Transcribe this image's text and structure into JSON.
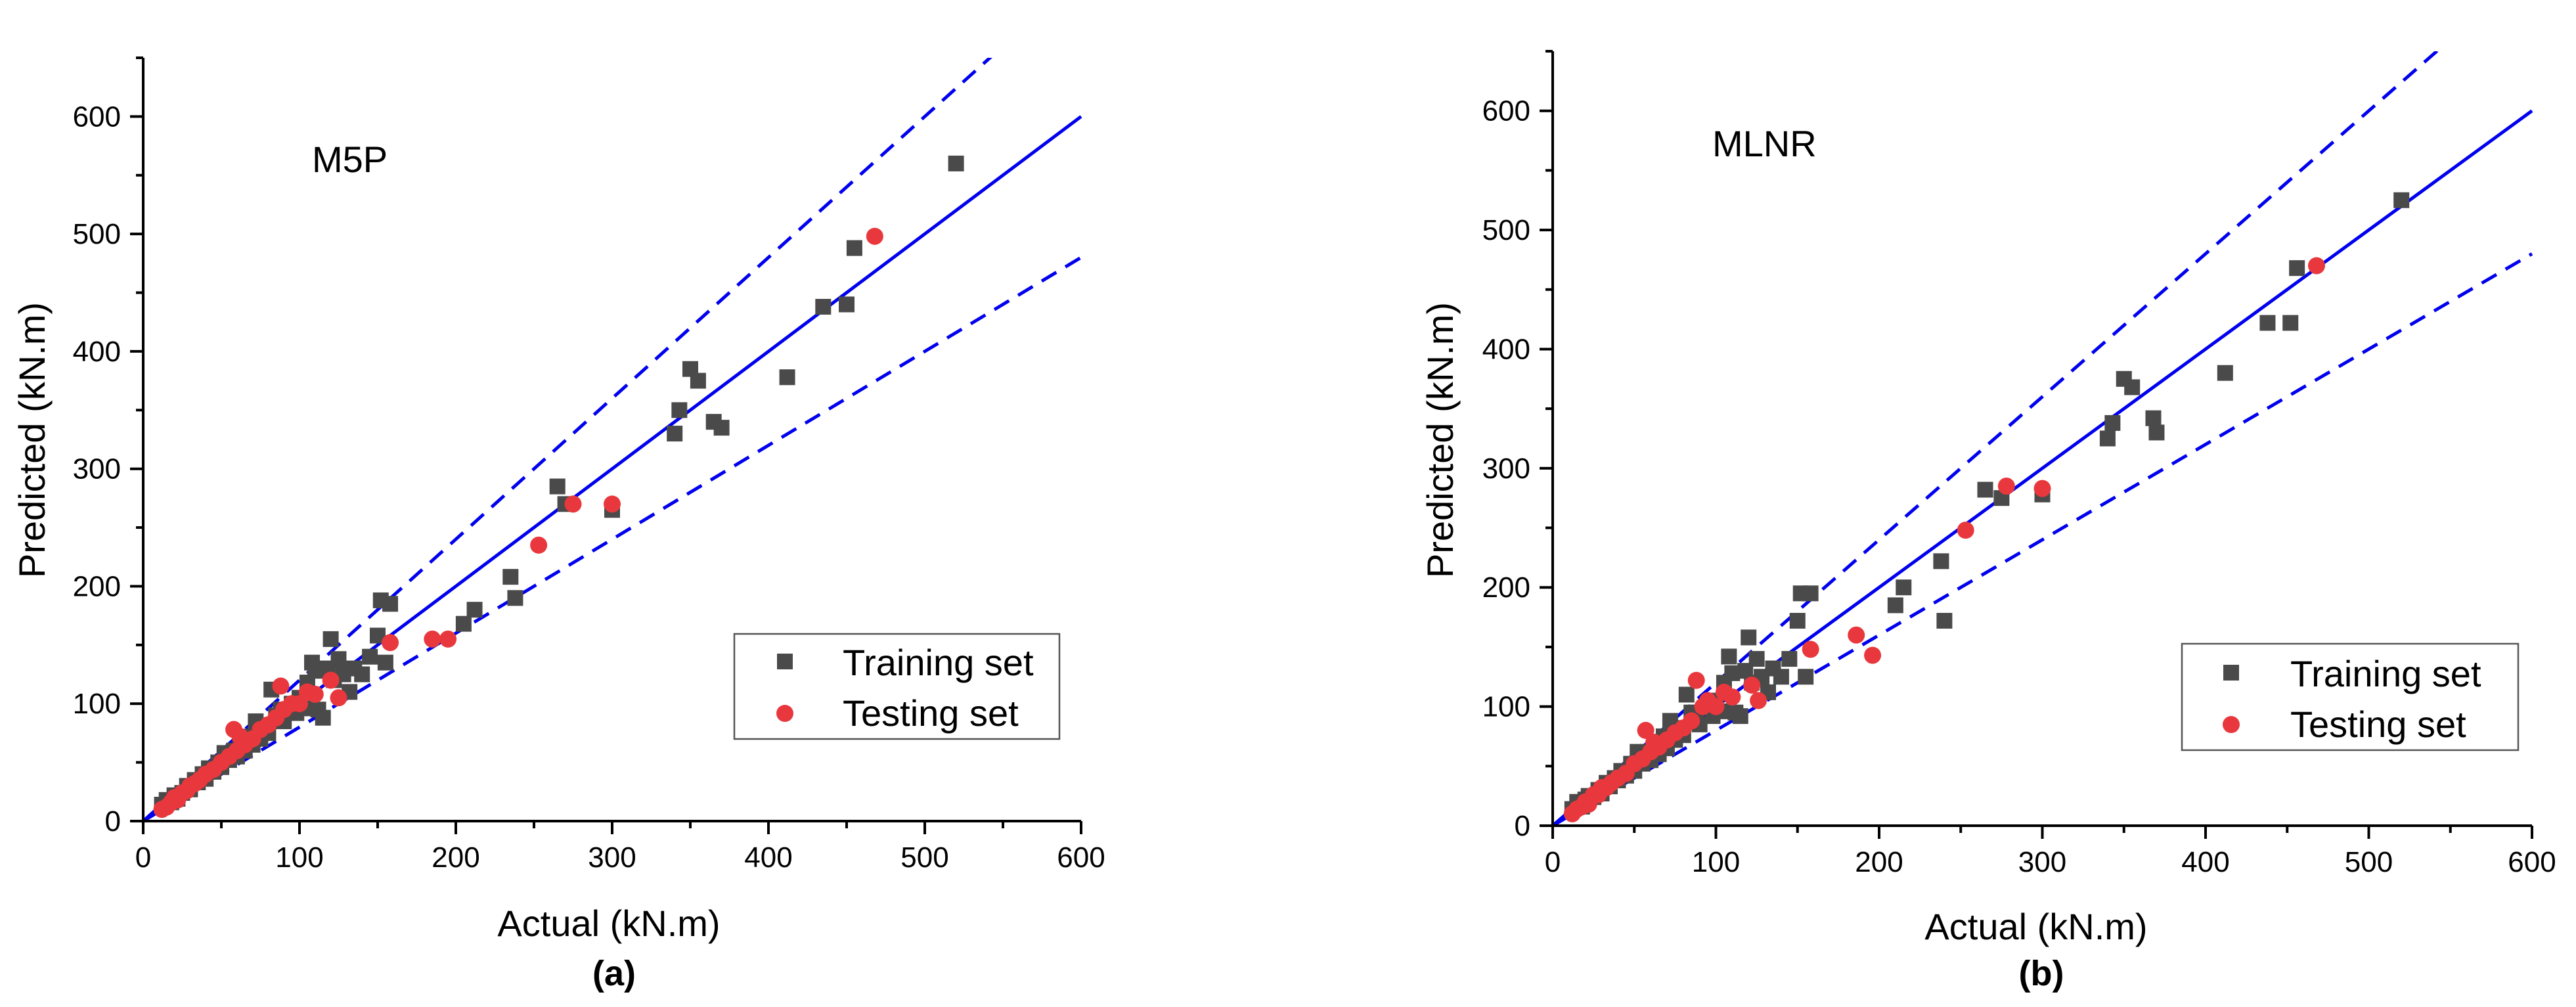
{
  "colors": {
    "training": "#4a4a4a",
    "testing": "#e8383d",
    "line": "#0000ee",
    "axis": "#000000"
  },
  "chart_data": [
    {
      "type": "scatter",
      "panel_label": "(a)",
      "model_label": "M5P",
      "xlabel": "Actual (kN.m)",
      "ylabel": "Predicted (kN.m)",
      "xlim": [
        0,
        600
      ],
      "ylim": [
        0,
        650
      ],
      "xticks": [
        0,
        100,
        200,
        300,
        400,
        500,
        600
      ],
      "yticks": [
        0,
        100,
        200,
        300,
        400,
        500,
        600
      ],
      "legend_position": "bottom-right",
      "reference_lines": {
        "ideal_slope": 1.0,
        "upper_slope": 1.2,
        "lower_slope": 0.8
      },
      "series": [
        {
          "name": "Training set",
          "marker": "square",
          "points": [
            [
              12,
              14
            ],
            [
              15,
              18
            ],
            [
              18,
              16
            ],
            [
              20,
              22
            ],
            [
              22,
              19
            ],
            [
              25,
              24
            ],
            [
              28,
              30
            ],
            [
              30,
              27
            ],
            [
              33,
              35
            ],
            [
              35,
              33
            ],
            [
              38,
              40
            ],
            [
              40,
              36
            ],
            [
              42,
              45
            ],
            [
              45,
              42
            ],
            [
              48,
              50
            ],
            [
              50,
              46
            ],
            [
              52,
              58
            ],
            [
              55,
              52
            ],
            [
              58,
              60
            ],
            [
              60,
              55
            ],
            [
              62,
              68
            ],
            [
              65,
              60
            ],
            [
              68,
              72
            ],
            [
              70,
              65
            ],
            [
              72,
              85
            ],
            [
              75,
              70
            ],
            [
              78,
              80
            ],
            [
              80,
              75
            ],
            [
              82,
              112
            ],
            [
              85,
              90
            ],
            [
              88,
              95
            ],
            [
              90,
              85
            ],
            [
              95,
              100
            ],
            [
              98,
              92
            ],
            [
              100,
              105
            ],
            [
              103,
              96
            ],
            [
              105,
              118
            ],
            [
              108,
              135
            ],
            [
              110,
              128
            ],
            [
              112,
              95
            ],
            [
              115,
              88
            ],
            [
              118,
              130
            ],
            [
              120,
              155
            ],
            [
              122,
              120
            ],
            [
              125,
              138
            ],
            [
              128,
              125
            ],
            [
              132,
              110
            ],
            [
              135,
              130
            ],
            [
              140,
              125
            ],
            [
              145,
              140
            ],
            [
              150,
              158
            ],
            [
              152,
              188
            ],
            [
              155,
              135
            ],
            [
              158,
              185
            ],
            [
              205,
              168
            ],
            [
              212,
              180
            ],
            [
              235,
              208
            ],
            [
              238,
              190
            ],
            [
              265,
              285
            ],
            [
              270,
              270
            ],
            [
              300,
              265
            ],
            [
              340,
              330
            ],
            [
              343,
              350
            ],
            [
              350,
              385
            ],
            [
              355,
              375
            ],
            [
              365,
              340
            ],
            [
              370,
              335
            ],
            [
              412,
              378
            ],
            [
              435,
              438
            ],
            [
              450,
              440
            ],
            [
              455,
              488
            ],
            [
              520,
              560
            ]
          ]
        },
        {
          "name": "Testing set",
          "marker": "circle",
          "points": [
            [
              12,
              10
            ],
            [
              15,
              12
            ],
            [
              18,
              16
            ],
            [
              20,
              20
            ],
            [
              22,
              18
            ],
            [
              25,
              24
            ],
            [
              28,
              26
            ],
            [
              30,
              30
            ],
            [
              33,
              32
            ],
            [
              36,
              35
            ],
            [
              40,
              40
            ],
            [
              45,
              44
            ],
            [
              50,
              50
            ],
            [
              55,
              55
            ],
            [
              58,
              78
            ],
            [
              60,
              60
            ],
            [
              62,
              72
            ],
            [
              65,
              65
            ],
            [
              70,
              70
            ],
            [
              75,
              78
            ],
            [
              80,
              82
            ],
            [
              85,
              88
            ],
            [
              88,
              115
            ],
            [
              90,
              95
            ],
            [
              95,
              100
            ],
            [
              100,
              100
            ],
            [
              105,
              110
            ],
            [
              110,
              108
            ],
            [
              120,
              120
            ],
            [
              125,
              105
            ],
            [
              158,
              152
            ],
            [
              185,
              155
            ],
            [
              195,
              155
            ],
            [
              253,
              235
            ],
            [
              275,
              270
            ],
            [
              300,
              270
            ],
            [
              468,
              498
            ]
          ]
        }
      ]
    },
    {
      "type": "scatter",
      "panel_label": "(b)",
      "model_label": "MLNR",
      "xlabel": "Actual (kN.m)",
      "ylabel": "Predicted (kN.m)",
      "xlim": [
        0,
        600
      ],
      "ylim": [
        0,
        650
      ],
      "xticks": [
        0,
        100,
        200,
        300,
        400,
        500,
        600
      ],
      "yticks": [
        0,
        100,
        200,
        300,
        400,
        500,
        600
      ],
      "legend_position": "bottom-right",
      "reference_lines": {
        "ideal_slope": 1.0,
        "upper_slope": 1.2,
        "lower_slope": 0.8
      },
      "series": [
        {
          "name": "Training set",
          "marker": "square",
          "points": [
            [
              12,
              14
            ],
            [
              15,
              20
            ],
            [
              18,
              16
            ],
            [
              20,
              22
            ],
            [
              22,
              25
            ],
            [
              25,
              24
            ],
            [
              28,
              30
            ],
            [
              30,
              27
            ],
            [
              33,
              36
            ],
            [
              35,
              33
            ],
            [
              38,
              40
            ],
            [
              40,
              38
            ],
            [
              42,
              46
            ],
            [
              45,
              42
            ],
            [
              48,
              52
            ],
            [
              50,
              46
            ],
            [
              52,
              62
            ],
            [
              55,
              52
            ],
            [
              58,
              62
            ],
            [
              60,
              55
            ],
            [
              62,
              66
            ],
            [
              65,
              60
            ],
            [
              68,
              75
            ],
            [
              70,
              65
            ],
            [
              72,
              88
            ],
            [
              75,
              72
            ],
            [
              78,
              82
            ],
            [
              80,
              76
            ],
            [
              82,
              110
            ],
            [
              85,
              95
            ],
            [
              88,
              95
            ],
            [
              90,
              85
            ],
            [
              95,
              100
            ],
            [
              98,
              92
            ],
            [
              100,
              105
            ],
            [
              103,
              96
            ],
            [
              105,
              120
            ],
            [
              108,
              142
            ],
            [
              110,
              128
            ],
            [
              112,
              95
            ],
            [
              115,
              92
            ],
            [
              118,
              130
            ],
            [
              120,
              158
            ],
            [
              122,
              120
            ],
            [
              125,
              140
            ],
            [
              128,
              125
            ],
            [
              132,
              112
            ],
            [
              135,
              132
            ],
            [
              140,
              125
            ],
            [
              145,
              140
            ],
            [
              150,
              172
            ],
            [
              152,
              195
            ],
            [
              155,
              125
            ],
            [
              158,
              195
            ],
            [
              210,
              185
            ],
            [
              215,
              200
            ],
            [
              238,
              222
            ],
            [
              240,
              172
            ],
            [
              265,
              282
            ],
            [
              275,
              275
            ],
            [
              300,
              278
            ],
            [
              340,
              325
            ],
            [
              343,
              338
            ],
            [
              350,
              375
            ],
            [
              355,
              368
            ],
            [
              368,
              342
            ],
            [
              370,
              330
            ],
            [
              412,
              380
            ],
            [
              438,
              422
            ],
            [
              452,
              422
            ],
            [
              456,
              468
            ],
            [
              520,
              525
            ]
          ]
        },
        {
          "name": "Testing set",
          "marker": "circle",
          "points": [
            [
              12,
              10
            ],
            [
              15,
              14
            ],
            [
              18,
              16
            ],
            [
              20,
              20
            ],
            [
              22,
              18
            ],
            [
              25,
              26
            ],
            [
              28,
              26
            ],
            [
              30,
              32
            ],
            [
              33,
              32
            ],
            [
              36,
              36
            ],
            [
              40,
              40
            ],
            [
              45,
              44
            ],
            [
              50,
              52
            ],
            [
              55,
              56
            ],
            [
              57,
              80
            ],
            [
              60,
              62
            ],
            [
              62,
              70
            ],
            [
              65,
              66
            ],
            [
              70,
              72
            ],
            [
              75,
              78
            ],
            [
              80,
              82
            ],
            [
              85,
              88
            ],
            [
              88,
              122
            ],
            [
              92,
              100
            ],
            [
              95,
              105
            ],
            [
              100,
              100
            ],
            [
              105,
              112
            ],
            [
              110,
              108
            ],
            [
              122,
              118
            ],
            [
              126,
              105
            ],
            [
              158,
              148
            ],
            [
              186,
              160
            ],
            [
              196,
              143
            ],
            [
              253,
              248
            ],
            [
              278,
              285
            ],
            [
              300,
              283
            ],
            [
              468,
              470
            ]
          ]
        }
      ]
    }
  ]
}
